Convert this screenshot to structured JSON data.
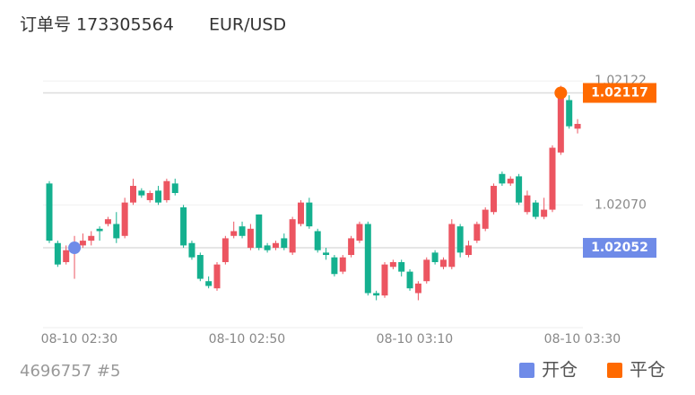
{
  "header": {
    "order": "订单号 173305564",
    "symbol": "EUR/USD"
  },
  "footer": {
    "account": "4696757 #5"
  },
  "chart_data": {
    "type": "candlestick",
    "up_color": "#ec5561",
    "down_color": "#14b08f",
    "categories": [
      null,
      null,
      null,
      null,
      "08-10 02:30",
      null,
      null,
      null,
      null,
      null,
      null,
      null,
      null,
      null,
      null,
      null,
      null,
      null,
      null,
      null,
      null,
      null,
      null,
      null,
      "08-10 02:50",
      null,
      null,
      null,
      null,
      null,
      null,
      null,
      null,
      null,
      null,
      null,
      null,
      null,
      null,
      null,
      null,
      null,
      null,
      null,
      "08-10 03:10",
      null,
      null,
      null,
      null,
      null,
      null,
      null,
      null,
      null,
      null,
      null,
      null,
      null,
      null,
      null,
      null,
      null,
      null,
      null,
      "08-10 03:30"
    ],
    "open": [
      1.02079,
      1.02054,
      1.02046,
      1.02052,
      1.02053,
      1.02055,
      1.0206,
      1.02062,
      1.02062,
      1.02057,
      1.02071,
      1.02076,
      1.02072,
      1.02076,
      1.02072,
      1.02079,
      1.02069,
      1.02054,
      1.02049,
      1.02038,
      1.02035,
      1.02046,
      1.02057,
      1.02061,
      1.02052,
      1.02066,
      1.02053,
      1.02052,
      1.02056,
      1.0205,
      1.02062,
      1.02071,
      1.02059,
      1.0205,
      1.02048,
      1.02042,
      1.02049,
      1.02055,
      1.02062,
      1.02033,
      1.02032,
      1.02044,
      1.02046,
      1.02042,
      1.02033,
      1.02038,
      1.0205,
      1.02044,
      1.02044,
      1.02061,
      1.02049,
      1.02055,
      1.0206,
      1.02067,
      1.02083,
      1.02079,
      1.02082,
      1.02067,
      1.02071,
      1.02065,
      1.02068,
      1.02092,
      1.02114,
      1.02102,
      null
    ],
    "high": [
      1.0208,
      1.02055,
      1.02053,
      1.02057,
      1.02058,
      1.02059,
      1.02061,
      1.02065,
      1.02067,
      1.02073,
      1.02081,
      1.02077,
      1.02076,
      1.02078,
      1.02081,
      1.02081,
      1.0207,
      1.02055,
      1.0205,
      1.0204,
      1.02046,
      1.02057,
      1.02063,
      1.02063,
      1.02062,
      1.02066,
      1.02054,
      1.02055,
      1.02058,
      1.02065,
      1.02072,
      1.02073,
      1.0206,
      1.02052,
      1.02049,
      1.02049,
      1.02057,
      1.02063,
      1.02063,
      1.02034,
      1.02046,
      1.02047,
      1.02047,
      1.02043,
      1.02038,
      1.02048,
      1.02051,
      1.02048,
      1.02064,
      1.02062,
      1.02055,
      1.02063,
      1.02069,
      1.02079,
      1.02084,
      1.02082,
      1.02083,
      1.02076,
      1.02072,
      1.02073,
      1.02095,
      1.0212,
      1.02116,
      1.02106,
      null
    ],
    "low": [
      1.02054,
      1.02044,
      1.02045,
      1.02039,
      1.02052,
      1.02053,
      1.02055,
      1.02061,
      1.02054,
      1.02056,
      1.0207,
      1.02073,
      1.02071,
      1.0207,
      1.02071,
      1.02074,
      1.02052,
      1.02047,
      1.02038,
      1.02035,
      1.02034,
      1.02045,
      1.02056,
      1.02056,
      1.02051,
      1.02051,
      1.0205,
      1.02051,
      1.02051,
      1.02049,
      1.02061,
      1.0206,
      1.0205,
      1.02047,
      1.0204,
      1.02041,
      1.02048,
      1.02054,
      1.02032,
      1.0203,
      1.02031,
      1.02043,
      1.0204,
      1.02034,
      1.0203,
      1.02037,
      1.02045,
      1.02043,
      1.02043,
      1.02048,
      1.02048,
      1.02054,
      1.02059,
      1.02066,
      1.02078,
      1.02078,
      1.0207,
      1.02066,
      1.02064,
      1.02064,
      1.02067,
      1.02091,
      1.02102,
      1.021,
      null
    ],
    "close": [
      1.02055,
      1.02045,
      1.02051,
      1.02053,
      1.02055,
      1.02057,
      1.02059,
      1.02064,
      1.02056,
      1.02071,
      1.02078,
      1.02074,
      1.02075,
      1.02071,
      1.0208,
      1.02075,
      1.02053,
      1.02048,
      1.02039,
      1.02036,
      1.02045,
      1.02056,
      1.02059,
      1.02057,
      1.0206,
      1.02052,
      1.02051,
      1.02054,
      1.02052,
      1.02064,
      1.02071,
      1.02061,
      1.02051,
      1.02049,
      1.02041,
      1.02048,
      1.02056,
      1.02062,
      1.02033,
      1.02032,
      1.02045,
      1.02046,
      1.02042,
      1.02035,
      1.02037,
      1.02047,
      1.02046,
      1.02047,
      1.02062,
      1.0205,
      1.02053,
      1.02062,
      1.02068,
      1.02078,
      1.02079,
      1.02081,
      1.02071,
      1.02074,
      1.02065,
      1.02068,
      1.02094,
      1.02117,
      1.02103,
      1.02104,
      null
    ],
    "ylim": [
      1.0202,
      1.0213
    ],
    "yticks": [
      {
        "value": 1.0207,
        "label": "1.02070"
      },
      1.02122
    ],
    "grid": true,
    "markers": [
      {
        "name": "开仓",
        "color": "#6f8be8",
        "value": 1.02052
      },
      {
        "name": "平仓",
        "color": "#ff6a00",
        "value": 1.02117
      }
    ]
  }
}
